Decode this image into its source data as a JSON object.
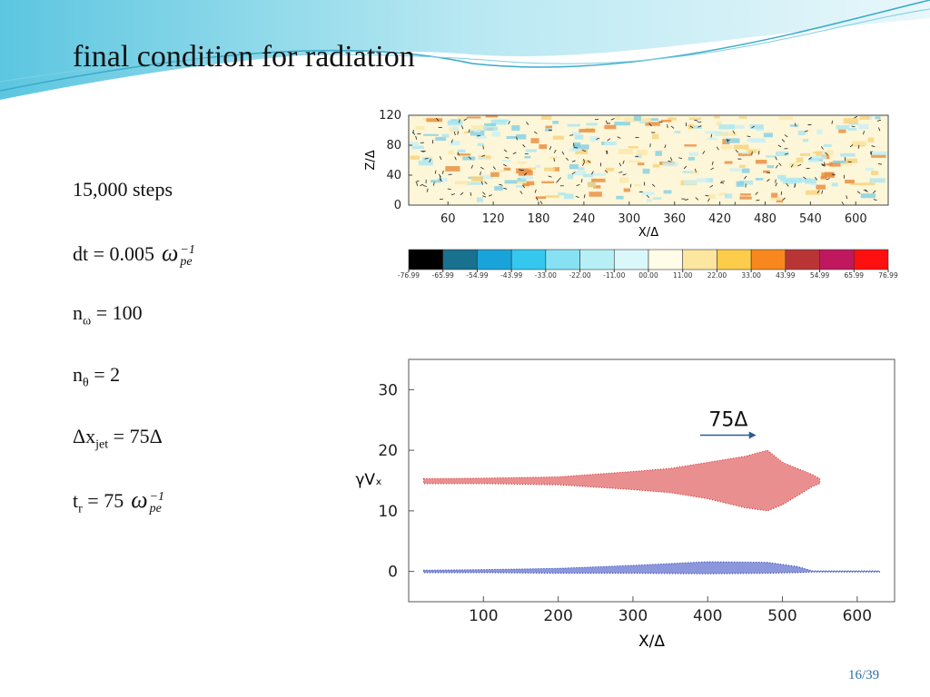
{
  "slide": {
    "title": "final condition for radiation",
    "page": "16/39",
    "items": [
      [
        {
          "text": "15,000 steps"
        }
      ],
      [
        {
          "text": "dt = 0.005"
        },
        {
          "text": "ω",
          "sub": "pe",
          "sup": "−1"
        }
      ],
      [
        {
          "text": "n",
          "sub": "ω"
        },
        {
          "text": " = 100"
        }
      ],
      [
        {
          "text": "n",
          "sub": "θ"
        },
        {
          "text": " = 2"
        }
      ],
      [
        {
          "text": "Δx",
          "sub": "jet"
        },
        {
          "text": " = 75Δ"
        }
      ],
      [
        {
          "text": "t",
          "sub": "r"
        },
        {
          "text": " = 75"
        },
        {
          "text": "ω",
          "sub": "pe",
          "sup": "−1"
        }
      ]
    ]
  },
  "chart_data": [
    {
      "type": "heatmap",
      "xlabel": "X/Δ",
      "ylabel": "Z/Δ",
      "xlim": [
        8,
        643
      ],
      "ylim": [
        0,
        120
      ],
      "xticks": [
        60,
        120,
        180,
        240,
        300,
        360,
        420,
        480,
        540,
        600
      ],
      "yticks": [
        0,
        40,
        80,
        120
      ],
      "colorbar": {
        "ticks": [
          -76.99,
          -65.99,
          -54.99,
          -43.99,
          {
            "value": -33,
            "label": "-33.00"
          },
          {
            "value": -22,
            "label": "-22.00"
          },
          {
            "value": -11,
            "label": "-11.00"
          },
          {
            "value": 0,
            "label": "00.00"
          },
          {
            "value": 11,
            "label": "11.00"
          },
          {
            "value": 22,
            "label": "22.00"
          },
          {
            "value": 33,
            "label": "33.00"
          },
          43.99,
          54.99,
          65.99,
          76.99
        ],
        "colors": [
          "#000000",
          "#17718f",
          "#1aa3d8",
          "#34c8ef",
          "#86e2f2",
          "#b6f0f6",
          "#daf8fa",
          "#fffde8",
          "#fde6a0",
          "#fccc4a",
          "#f8881e",
          "#b93535",
          "#c0185e",
          "#ff1010"
        ]
      }
    },
    {
      "type": "scatter",
      "xlabel": "X/Δ",
      "ylabel": "γVₓ",
      "xlim": [
        0,
        650
      ],
      "ylim": [
        -5,
        35
      ],
      "xticks": [
        100,
        200,
        300,
        400,
        500,
        600
      ],
      "yticks": [
        0,
        10,
        20,
        30
      ],
      "series": [
        {
          "color": "#d42020",
          "x": [
            20,
            100,
            200,
            300,
            350,
            400,
            450,
            480,
            500,
            520,
            540,
            550
          ],
          "lower": [
            14.5,
            14.5,
            14.3,
            13.5,
            13,
            12,
            10.5,
            10,
            11,
            12.5,
            14,
            14.5
          ],
          "upper": [
            15.3,
            15.4,
            15.6,
            16.5,
            17,
            18,
            19,
            20,
            18,
            17,
            16,
            15.3
          ]
        },
        {
          "color": "#1a2fb8",
          "x": [
            20,
            100,
            200,
            300,
            400,
            480,
            520,
            540,
            630
          ],
          "lower": [
            -0.2,
            -0.2,
            -0.3,
            -0.3,
            -0.4,
            -0.3,
            -0.2,
            -0.1,
            -0.1
          ],
          "upper": [
            0.2,
            0.3,
            0.5,
            1,
            1.6,
            1.5,
            0.8,
            0.1,
            0.1
          ]
        }
      ],
      "annotation": {
        "text": "75Δ",
        "x": [
          390,
          465
        ],
        "y": 22.5
      }
    }
  ]
}
